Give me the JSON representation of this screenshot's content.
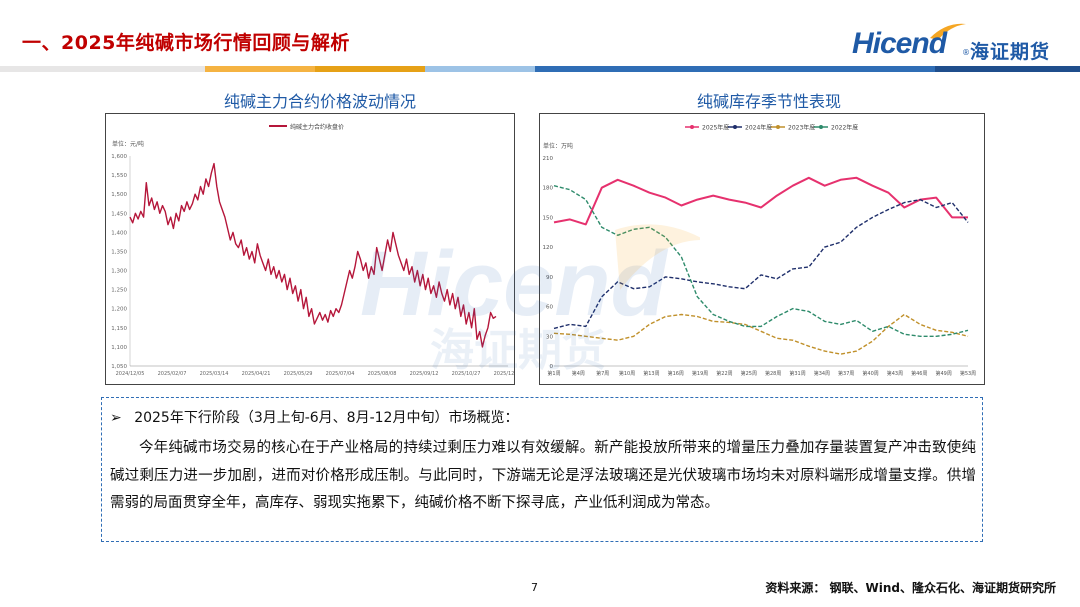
{
  "slide": {
    "title": "一、2025年纯碱市场行情回顾与解析",
    "logo_text": "Hicend",
    "logo_reg": "®",
    "logo_cn": "海证期货",
    "page_number": "7",
    "source": "资料来源：   钢联、Wind、隆众石化、海证期货研究所",
    "band_colors": [
      "#e7e6e6",
      "#f5b342",
      "#e6a117",
      "#9dc3e6",
      "#2f6db5",
      "#1f4e8c"
    ]
  },
  "summary": {
    "heading": "2025年下行阶段（3月上旬-6月、8月-12月中旬）市场概览：",
    "body": "今年纯碱市场交易的核心在于产业格局的持续过剩压力难以有效缓解。新产能投放所带来的增量压力叠加存量装置复产冲击致使纯碱过剩压力进一步加剧，进而对价格形成压制。与此同时，下游端无论是浮法玻璃还是光伏玻璃市场均未对原料端形成增量支撑。供增需弱的局面贯穿全年，高库存、弱现实拖累下，纯碱价格不断下探寻底，产业低利润成为常态。",
    "bullet": "➢"
  },
  "chart_data": [
    {
      "type": "line",
      "title": "纯碱主力合约价格波动情况",
      "legend": [
        "纯碱主力合约收盘价"
      ],
      "ylabel": "单位：元/吨",
      "ylim": [
        1050,
        1600
      ],
      "yticks": [
        "1,050",
        "1,100",
        "1,150",
        "1,200",
        "1,250",
        "1,300",
        "1,350",
        "1,400",
        "1,450",
        "1,500",
        "1,550",
        "1,600"
      ],
      "xticks": [
        "2024/12/05",
        "2025/02/07",
        "2025/03/14",
        "2025/04/21",
        "2025/05/29",
        "2025/07/04",
        "2025/08/08",
        "2025/09/12",
        "2025/10/27",
        "2025/12/05"
      ],
      "color": "#b5163a",
      "series": [
        {
          "name": "纯碱主力合约收盘价",
          "values": [
            1440,
            1425,
            1450,
            1435,
            1455,
            1440,
            1530,
            1470,
            1490,
            1460,
            1480,
            1450,
            1470,
            1455,
            1420,
            1440,
            1410,
            1450,
            1430,
            1470,
            1455,
            1480,
            1460,
            1475,
            1500,
            1485,
            1520,
            1500,
            1540,
            1520,
            1555,
            1580,
            1520,
            1480,
            1460,
            1440,
            1410,
            1380,
            1400,
            1370,
            1360,
            1380,
            1340,
            1360,
            1330,
            1350,
            1320,
            1370,
            1340,
            1320,
            1300,
            1330,
            1290,
            1310,
            1280,
            1300,
            1270,
            1290,
            1250,
            1280,
            1240,
            1260,
            1220,
            1250,
            1200,
            1230,
            1180,
            1200,
            1160,
            1175,
            1190,
            1170,
            1185,
            1165,
            1195,
            1180,
            1200,
            1190,
            1210,
            1240,
            1270,
            1300,
            1280,
            1310,
            1350,
            1330,
            1300,
            1320,
            1280,
            1310,
            1290,
            1360,
            1330,
            1300,
            1340,
            1380,
            1350,
            1400,
            1370,
            1340,
            1320,
            1300,
            1330,
            1290,
            1310,
            1270,
            1300,
            1260,
            1290,
            1250,
            1280,
            1240,
            1260,
            1230,
            1270,
            1240,
            1220,
            1250,
            1210,
            1240,
            1200,
            1230,
            1180,
            1210,
            1160,
            1190,
            1150,
            1200,
            1120,
            1140,
            1100,
            1130,
            1150,
            1190,
            1175,
            1180
          ]
        }
      ]
    },
    {
      "type": "line",
      "title": "纯碱库存季节性表现",
      "ylabel": "单位：万吨",
      "ylim": [
        0,
        210
      ],
      "yticks": [
        "0",
        "30",
        "60",
        "90",
        "120",
        "150",
        "180",
        "210"
      ],
      "xticks": [
        "第1周",
        "第4周",
        "第7周",
        "第10周",
        "第13周",
        "第16周",
        "第19周",
        "第22周",
        "第25周",
        "第28周",
        "第31周",
        "第34周",
        "第37周",
        "第40周",
        "第43周",
        "第46周",
        "第49周",
        "第53周"
      ],
      "x": [
        1,
        3,
        5,
        7,
        9,
        11,
        13,
        15,
        17,
        19,
        21,
        23,
        25,
        27,
        29,
        31,
        33,
        35,
        37,
        39,
        41,
        43,
        45,
        47,
        49,
        51,
        53
      ],
      "series": [
        {
          "name": "2025年度",
          "color": "#e6316e",
          "values": [
            145,
            148,
            143,
            180,
            188,
            182,
            175,
            170,
            162,
            168,
            172,
            168,
            165,
            160,
            172,
            182,
            190,
            182,
            188,
            190,
            182,
            175,
            160,
            168,
            170,
            150,
            150
          ]
        },
        {
          "name": "2024年度",
          "color": "#1f2f6b",
          "values": [
            38,
            42,
            40,
            70,
            85,
            78,
            80,
            90,
            88,
            85,
            83,
            80,
            78,
            92,
            88,
            98,
            100,
            120,
            125,
            140,
            150,
            158,
            165,
            168,
            160,
            165,
            145
          ]
        },
        {
          "name": "2023年度",
          "color": "#c0902a",
          "values": [
            33,
            32,
            30,
            28,
            26,
            30,
            42,
            50,
            52,
            50,
            45,
            44,
            42,
            35,
            28,
            26,
            20,
            15,
            12,
            15,
            25,
            40,
            52,
            42,
            36,
            34,
            30
          ]
        },
        {
          "name": "2022年度",
          "color": "#2e8b6b",
          "values": [
            182,
            178,
            168,
            140,
            132,
            138,
            140,
            130,
            110,
            70,
            52,
            45,
            40,
            40,
            50,
            58,
            55,
            45,
            42,
            46,
            35,
            40,
            32,
            30,
            30,
            32,
            36
          ]
        }
      ]
    }
  ]
}
